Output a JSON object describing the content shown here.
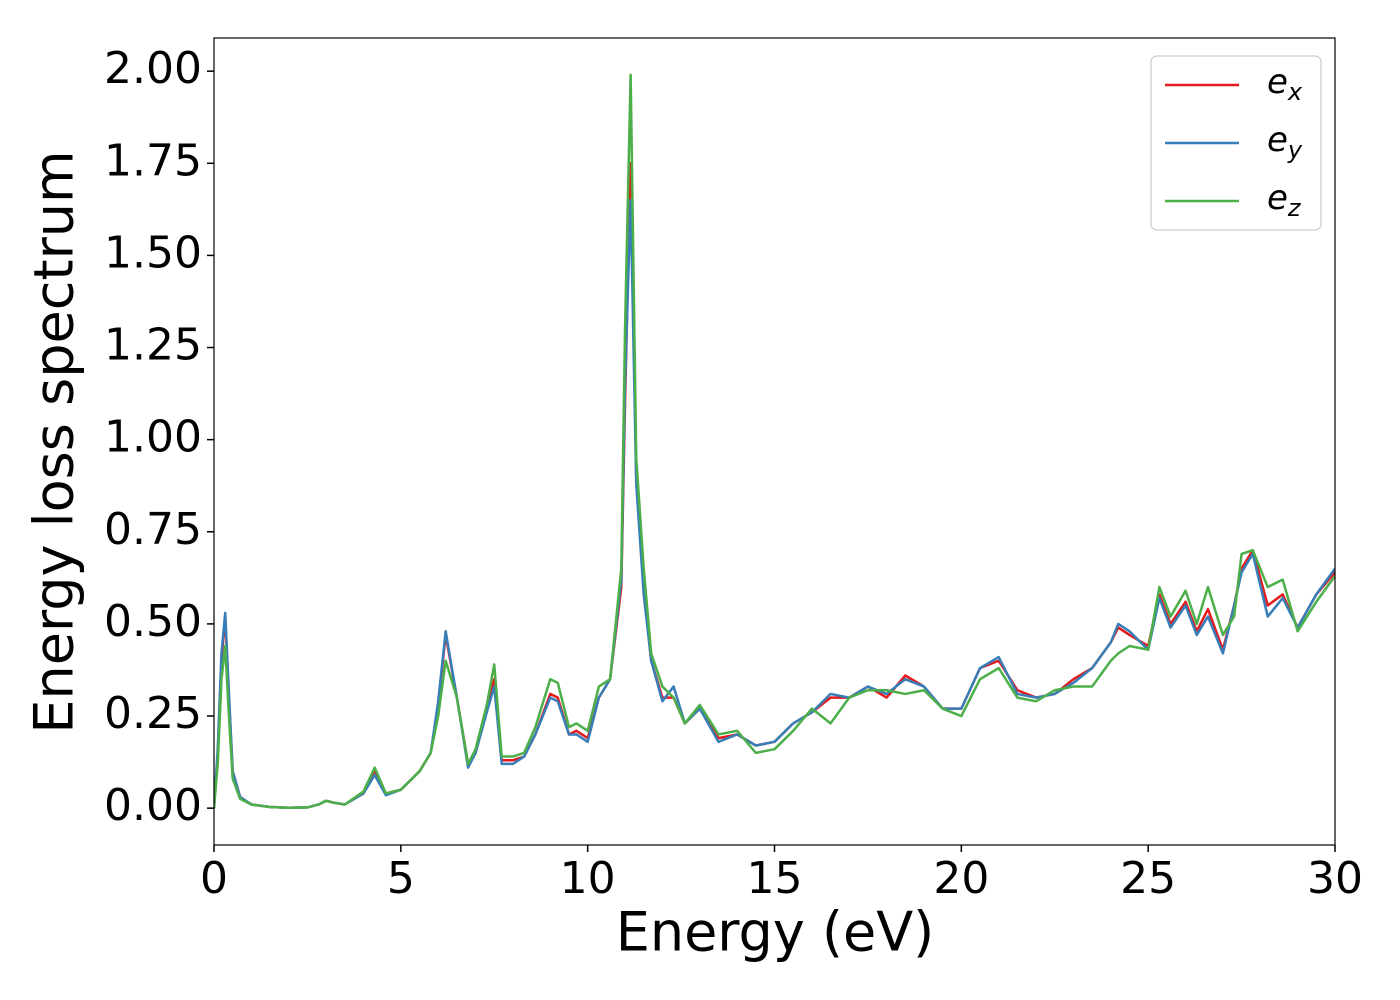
{
  "chart_data": {
    "type": "line",
    "xlabel": "Energy (eV)",
    "ylabel": "Energy loss spectrum",
    "x": [
      0,
      0.1,
      0.2,
      0.3,
      0.4,
      0.5,
      0.7,
      1.0,
      1.5,
      2.0,
      2.5,
      2.8,
      3.0,
      3.2,
      3.5,
      4.0,
      4.3,
      4.6,
      5.0,
      5.5,
      5.8,
      6.0,
      6.2,
      6.5,
      6.8,
      7.0,
      7.3,
      7.5,
      7.7,
      8.0,
      8.3,
      8.6,
      9.0,
      9.2,
      9.5,
      9.7,
      10.0,
      10.3,
      10.6,
      10.9,
      11.0,
      11.15,
      11.3,
      11.5,
      11.7,
      12.0,
      12.3,
      12.6,
      13.0,
      13.5,
      14.0,
      14.5,
      15.0,
      15.5,
      16.0,
      16.5,
      17.0,
      17.5,
      18.0,
      18.5,
      19.0,
      19.5,
      20.0,
      20.5,
      21.0,
      21.5,
      22.0,
      22.5,
      23.0,
      23.5,
      24.0,
      24.2,
      24.5,
      25.0,
      25.3,
      25.6,
      26.0,
      26.3,
      26.6,
      27.0,
      27.3,
      27.5,
      27.8,
      28.2,
      28.6,
      29.0,
      29.5,
      30.0
    ],
    "series": [
      {
        "name": "e_x",
        "color": "#e41a1c",
        "values": [
          0,
          0.15,
          0.4,
          0.52,
          0.3,
          0.1,
          0.03,
          0.01,
          0.003,
          0.001,
          0.002,
          0.01,
          0.02,
          0.015,
          0.01,
          0.04,
          0.1,
          0.04,
          0.05,
          0.1,
          0.15,
          0.28,
          0.47,
          0.3,
          0.12,
          0.15,
          0.27,
          0.35,
          0.13,
          0.13,
          0.14,
          0.2,
          0.31,
          0.3,
          0.2,
          0.21,
          0.19,
          0.3,
          0.35,
          0.6,
          1.1,
          1.75,
          0.9,
          0.6,
          0.4,
          0.3,
          0.3,
          0.23,
          0.27,
          0.19,
          0.2,
          0.17,
          0.18,
          0.23,
          0.26,
          0.3,
          0.3,
          0.33,
          0.3,
          0.36,
          0.33,
          0.27,
          0.27,
          0.38,
          0.4,
          0.32,
          0.3,
          0.31,
          0.35,
          0.38,
          0.45,
          0.49,
          0.47,
          0.44,
          0.58,
          0.5,
          0.56,
          0.48,
          0.54,
          0.43,
          0.55,
          0.65,
          0.7,
          0.55,
          0.58,
          0.49,
          0.58,
          0.64
        ]
      },
      {
        "name": "e_y",
        "color": "#377eb8",
        "values": [
          0,
          0.16,
          0.42,
          0.53,
          0.31,
          0.1,
          0.03,
          0.01,
          0.003,
          0.001,
          0.002,
          0.01,
          0.02,
          0.015,
          0.01,
          0.04,
          0.09,
          0.035,
          0.05,
          0.1,
          0.15,
          0.29,
          0.48,
          0.3,
          0.11,
          0.15,
          0.26,
          0.33,
          0.12,
          0.12,
          0.14,
          0.2,
          0.3,
          0.29,
          0.2,
          0.2,
          0.18,
          0.3,
          0.35,
          0.62,
          1.15,
          1.65,
          0.88,
          0.58,
          0.4,
          0.29,
          0.33,
          0.23,
          0.27,
          0.18,
          0.2,
          0.17,
          0.18,
          0.23,
          0.26,
          0.31,
          0.3,
          0.33,
          0.31,
          0.35,
          0.33,
          0.27,
          0.27,
          0.38,
          0.41,
          0.31,
          0.3,
          0.31,
          0.34,
          0.38,
          0.45,
          0.5,
          0.48,
          0.43,
          0.57,
          0.49,
          0.55,
          0.47,
          0.52,
          0.42,
          0.55,
          0.64,
          0.69,
          0.52,
          0.57,
          0.49,
          0.58,
          0.65
        ]
      },
      {
        "name": "e_z",
        "color": "#4daf4a",
        "values": [
          0,
          0.12,
          0.35,
          0.44,
          0.25,
          0.08,
          0.025,
          0.01,
          0.003,
          0.001,
          0.002,
          0.01,
          0.02,
          0.015,
          0.01,
          0.045,
          0.11,
          0.04,
          0.05,
          0.1,
          0.15,
          0.25,
          0.4,
          0.3,
          0.12,
          0.16,
          0.28,
          0.39,
          0.14,
          0.14,
          0.15,
          0.22,
          0.35,
          0.34,
          0.22,
          0.23,
          0.21,
          0.33,
          0.35,
          0.65,
          1.3,
          1.99,
          0.95,
          0.65,
          0.42,
          0.33,
          0.3,
          0.23,
          0.28,
          0.2,
          0.21,
          0.15,
          0.16,
          0.21,
          0.27,
          0.23,
          0.3,
          0.32,
          0.32,
          0.31,
          0.32,
          0.27,
          0.25,
          0.35,
          0.38,
          0.3,
          0.29,
          0.32,
          0.33,
          0.33,
          0.4,
          0.42,
          0.44,
          0.43,
          0.6,
          0.52,
          0.59,
          0.5,
          0.6,
          0.47,
          0.52,
          0.69,
          0.7,
          0.6,
          0.62,
          0.48,
          0.56,
          0.63
        ]
      }
    ],
    "xlim": [
      0,
      30
    ],
    "xticks": [
      0,
      5,
      10,
      15,
      20,
      25,
      30
    ],
    "ylim": [
      -0.1,
      2.09
    ],
    "yticks": [
      {
        "value": 0,
        "label": "0.00"
      },
      {
        "value": 0.25,
        "label": "0.25"
      },
      {
        "value": 0.5,
        "label": "0.50"
      },
      {
        "value": 0.75,
        "label": "0.75"
      },
      {
        "value": 1,
        "label": "1.00"
      },
      {
        "value": 1.25,
        "label": "1.25"
      },
      {
        "value": 1.5,
        "label": "1.50"
      },
      {
        "value": 1.75,
        "label": "1.75"
      },
      {
        "value": 2,
        "label": "2.00"
      }
    ],
    "grid": false,
    "legend": "upper right"
  }
}
